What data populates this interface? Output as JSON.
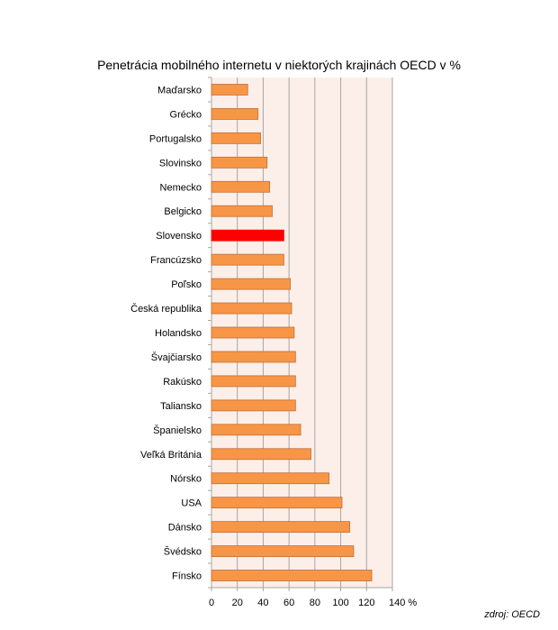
{
  "chart_data": {
    "type": "bar",
    "orientation": "horizontal",
    "title": "Penetrácia mobilného internetu v niektorých krajinách OECD v %",
    "source": "zdroj: OECD",
    "categories": [
      "Maďarsko",
      "Grécko",
      "Portugalsko",
      "Slovinsko",
      "Nemecko",
      "Belgicko",
      "Slovensko",
      "Francúzsko",
      "Poľsko",
      "Česká republika",
      "Holandsko",
      "Švajčiarsko",
      "Rakúsko",
      "Taliansko",
      "Španielsko",
      "Veľká Británia",
      "Nórsko",
      "USA",
      "Dánsko",
      "Švédsko",
      "Fínsko"
    ],
    "values": [
      28,
      36,
      38,
      43,
      45,
      47,
      56,
      56,
      61,
      62,
      64,
      65,
      65,
      65,
      69,
      77,
      91,
      101,
      107,
      110,
      124
    ],
    "highlight": "Slovensko",
    "xlim": [
      0,
      140
    ],
    "xticks": [
      "0",
      "20",
      "40",
      "60",
      "80",
      "100",
      "120",
      "140 %"
    ],
    "grid": true,
    "colors": {
      "bar": "#F79646",
      "bar_border": "#C0703A",
      "highlight": "#FF0000",
      "plot_bg": "#FCEEE8",
      "grid": "#A6A6A6"
    }
  }
}
